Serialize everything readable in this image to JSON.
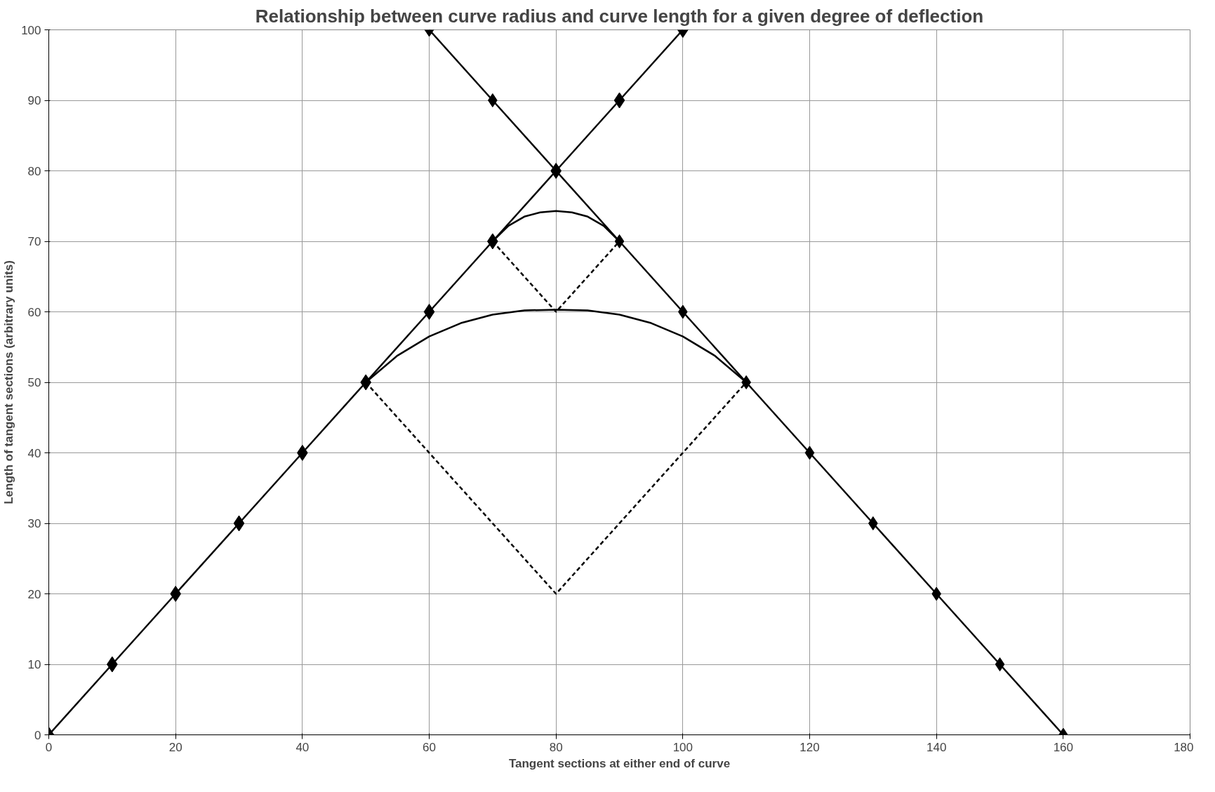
{
  "chart_data": {
    "type": "line",
    "title": "Relationship between curve radius and curve length for a given degree of deflection",
    "xlabel": "Tangent sections at either end of curve",
    "ylabel": "Length of tangent sections (arbitrary units)",
    "series": [
      {
        "color": "#000000",
        "marker": "diamond",
        "line_style": "solid",
        "x": [
          0,
          10,
          20,
          30,
          40,
          50,
          60,
          70,
          80,
          90,
          100
        ],
        "values": [
          0,
          10,
          20,
          30,
          40,
          50,
          60,
          70,
          80,
          90,
          100
        ]
      },
      {
        "color": "#000000",
        "marker": "diamond",
        "line_style": "solid",
        "x": [
          60,
          70,
          80,
          90,
          100,
          110,
          120,
          130,
          140,
          150,
          160
        ],
        "values": [
          100,
          90,
          80,
          70,
          60,
          50,
          40,
          30,
          20,
          10,
          0
        ]
      },
      {
        "color": "#000000",
        "marker": "none",
        "line_style": "solid",
        "x": [
          50,
          55,
          60,
          65,
          70,
          75,
          80,
          85,
          90,
          95,
          100,
          105,
          110
        ],
        "values": [
          50,
          53.8,
          56.5,
          58.4,
          59.6,
          60.2,
          60.3,
          60.2,
          59.6,
          58.4,
          56.5,
          53.8,
          50
        ]
      },
      {
        "color": "#000000",
        "marker": "none",
        "line_style": "solid",
        "x": [
          70,
          72.5,
          75,
          77.5,
          80,
          82.5,
          85,
          87.5,
          90
        ],
        "values": [
          70,
          72.2,
          73.5,
          74.1,
          74.3,
          74.1,
          73.5,
          72.2,
          70
        ]
      },
      {
        "color": "#000000",
        "marker": "none",
        "line_style": "dashed",
        "x": [
          50,
          80,
          110
        ],
        "values": [
          50,
          20,
          50
        ]
      },
      {
        "color": "#000000",
        "marker": "none",
        "line_style": "dashed",
        "x": [
          70,
          80,
          90
        ],
        "values": [
          70,
          60,
          70
        ]
      }
    ],
    "xlim": [
      0,
      180
    ],
    "xticks": [
      0,
      20,
      40,
      60,
      80,
      100,
      120,
      140,
      160,
      180
    ],
    "ylim": [
      0,
      100
    ],
    "yticks": [
      0,
      10,
      20,
      30,
      40,
      50,
      60,
      70,
      80,
      90,
      100
    ],
    "grid": true
  }
}
